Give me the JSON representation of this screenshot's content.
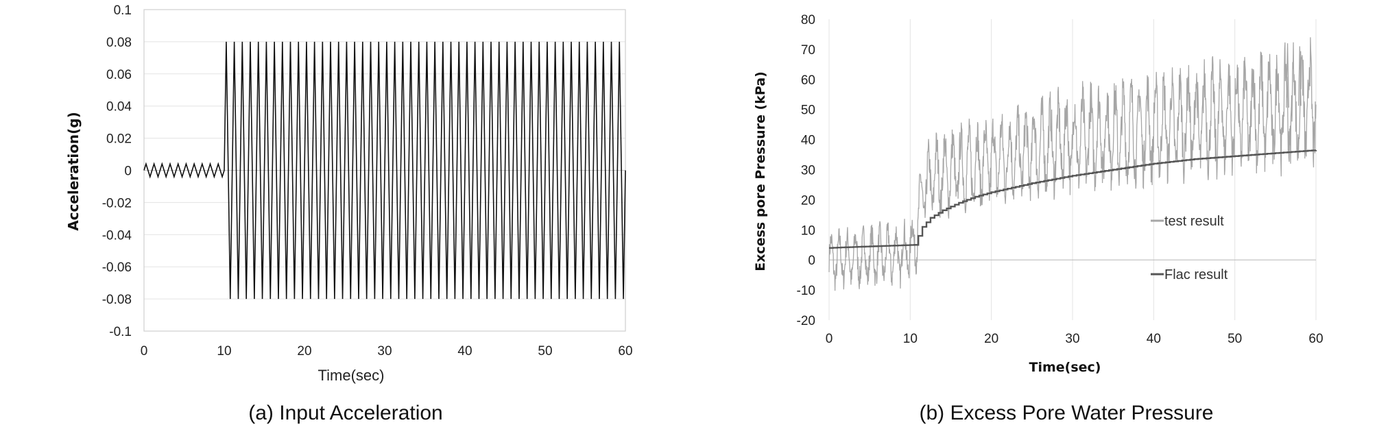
{
  "chart_data": [
    {
      "type": "line",
      "caption": "(a) Input Acceleration",
      "xlabel": "Time(sec)",
      "ylabel": "Acceleration(g)",
      "xlim": [
        0,
        60
      ],
      "ylim": [
        -0.1,
        0.1
      ],
      "x_ticks": [
        "0",
        "10",
        "20",
        "30",
        "40",
        "50",
        "60"
      ],
      "y_ticks": [
        "0.1",
        "0.08",
        "0.06",
        "0.04",
        "0.02",
        "0",
        "-0.02",
        "-0.04",
        "-0.06",
        "-0.08",
        "-0.1"
      ],
      "grid": "horizontal",
      "series": [
        {
          "color": "#111111",
          "segments": [
            {
              "t_start": 0,
              "t_end": 10,
              "amplitude": 0.004,
              "cycles": 10
            },
            {
              "t_start": 10,
              "t_end": 60,
              "amplitude": 0.08,
              "cycles": 50
            }
          ]
        }
      ]
    },
    {
      "type": "line",
      "caption": "(b) Excess Pore Water Pressure",
      "xlabel": "Time(sec)",
      "ylabel": "Excess pore Pressure (kPa)",
      "xlim": [
        0,
        60
      ],
      "ylim": [
        -20,
        80
      ],
      "x_ticks": [
        "0",
        "10",
        "20",
        "30",
        "40",
        "50",
        "60"
      ],
      "y_ticks": [
        "80",
        "70",
        "60",
        "50",
        "40",
        "30",
        "20",
        "10",
        "0",
        "-10",
        "-20"
      ],
      "grid": "vertical",
      "legend": "right",
      "series": [
        {
          "name": "test result",
          "color": "#a6a6a6",
          "mean": [
            [
              0,
              0
            ],
            [
              9,
              2
            ],
            [
              10.5,
              5
            ],
            [
              11.5,
              22
            ],
            [
              13,
              28
            ],
            [
              20,
              33
            ],
            [
              30,
              40
            ],
            [
              40,
              44
            ],
            [
              50,
              48
            ],
            [
              60,
              52
            ]
          ],
          "amplitude": [
            [
              0,
              9
            ],
            [
              10,
              10
            ],
            [
              11.5,
              13
            ],
            [
              20,
              14
            ],
            [
              30,
              16
            ],
            [
              40,
              17
            ],
            [
              50,
              18
            ],
            [
              60,
              20
            ]
          ],
          "peaks": [
            [
              56.5,
              72
            ],
            [
              58,
              71
            ]
          ]
        },
        {
          "name": "Flac result",
          "color": "#555555",
          "points": [
            [
              0,
              4
            ],
            [
              5,
              4.5
            ],
            [
              10.5,
              5
            ],
            [
              11,
              8
            ],
            [
              11.5,
              11
            ],
            [
              12.5,
              14
            ],
            [
              14,
              16.5
            ],
            [
              16,
              19
            ],
            [
              18,
              21
            ],
            [
              20,
              22.5
            ],
            [
              25,
              25.5
            ],
            [
              30,
              28
            ],
            [
              35,
              30
            ],
            [
              40,
              32
            ],
            [
              45,
              33.5
            ],
            [
              50,
              34.5
            ],
            [
              55,
              35.5
            ],
            [
              60,
              36.5
            ]
          ]
        }
      ]
    }
  ]
}
